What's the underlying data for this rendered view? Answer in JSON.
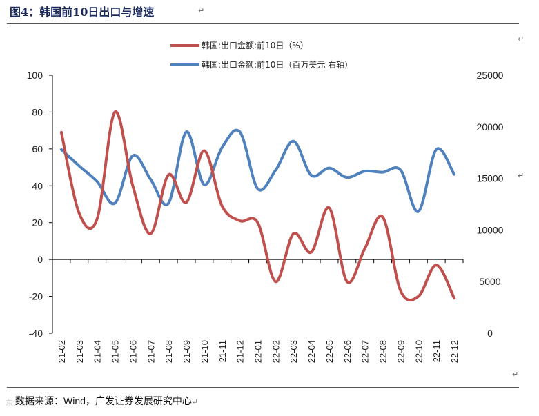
{
  "figure": {
    "title": "图4：韩国前10日出口与增速",
    "source_label": "数据来源：",
    "source_wind": "Wind",
    "source_rest": "，广发证券发展研究中心"
  },
  "colors": {
    "red": "#c0504d",
    "blue": "#4f81bd",
    "axis": "#000000"
  },
  "chart_data": {
    "type": "line",
    "title": "",
    "categories": [
      "21-02",
      "21-03",
      "21-04",
      "21-05",
      "21-06",
      "21-07",
      "21-08",
      "21-09",
      "21-10",
      "21-11",
      "21-12",
      "22-01",
      "22-02",
      "22-03",
      "22-04",
      "22-05",
      "22-06",
      "22-07",
      "22-08",
      "22-09",
      "22-10",
      "22-11",
      "22-12"
    ],
    "series": [
      {
        "name": "韩国:出口金额:前10日（%）",
        "axis": "left",
        "color": "#c0504d",
        "values": [
          69,
          25,
          22,
          80,
          40,
          14,
          46,
          31,
          59,
          29,
          21,
          20,
          -12,
          14,
          4,
          28,
          -12,
          6,
          23,
          -17,
          -20,
          -3,
          -21
        ]
      },
      {
        "name": "韩国:出口金额:前10日（百万美元 右轴）",
        "axis": "right",
        "color": "#4f81bd",
        "values": [
          17800,
          16200,
          14700,
          12600,
          17200,
          14900,
          12600,
          19500,
          14400,
          18000,
          19500,
          14000,
          15800,
          18600,
          15300,
          16000,
          15100,
          15700,
          15600,
          15800,
          11800,
          17800,
          15400
        ]
      }
    ],
    "y_left": {
      "min": -40,
      "max": 100,
      "ticks": [
        "100",
        "80",
        "60",
        "40",
        "20",
        "0",
        "-20",
        "-40"
      ]
    },
    "y_right": {
      "min": 0,
      "max": 25000,
      "ticks": [
        "25000",
        "20000",
        "15000",
        "10000",
        "5000",
        "0"
      ]
    },
    "legend_position": "top-center",
    "grid": false
  },
  "watermark": "东方财富"
}
